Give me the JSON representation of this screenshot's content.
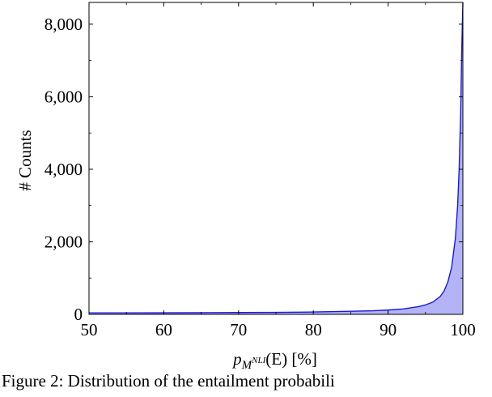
{
  "chart_data": {
    "type": "area",
    "title": "",
    "xlabel": "p_{M^{NLI}}(E) [%]",
    "xlabel_parts": {
      "main": "p",
      "sub_script": "M",
      "sub_sup": "NLI",
      "arg": "(E) [%]"
    },
    "ylabel": "# Counts",
    "xlim": [
      50,
      100
    ],
    "ylim": [
      0,
      8600
    ],
    "x_ticks": [
      50,
      60,
      70,
      80,
      90,
      100
    ],
    "y_ticks": [
      0,
      2000,
      4000,
      6000,
      8000
    ],
    "x_tick_labels": [
      "50",
      "60",
      "70",
      "80",
      "90",
      "100"
    ],
    "y_tick_labels": [
      "0",
      "2,000",
      "4,000",
      "6,000",
      "8,000"
    ],
    "grid": false,
    "line_color": "#1a1ad6",
    "fill_color": "#b3b3f5",
    "x": [
      50,
      55,
      60,
      65,
      70,
      75,
      80,
      85,
      88,
      90,
      92,
      94,
      95,
      96,
      97,
      97.5,
      98,
      98.5,
      99,
      99.3,
      99.5,
      99.7,
      99.85,
      100
    ],
    "y": [
      40,
      40,
      42,
      45,
      50,
      55,
      65,
      85,
      100,
      120,
      150,
      210,
      260,
      340,
      500,
      650,
      900,
      1300,
      2100,
      3000,
      4000,
      5500,
      7300,
      8600
    ]
  },
  "caption": {
    "text": "Figure 2: Distribution of the entailment probabili"
  }
}
